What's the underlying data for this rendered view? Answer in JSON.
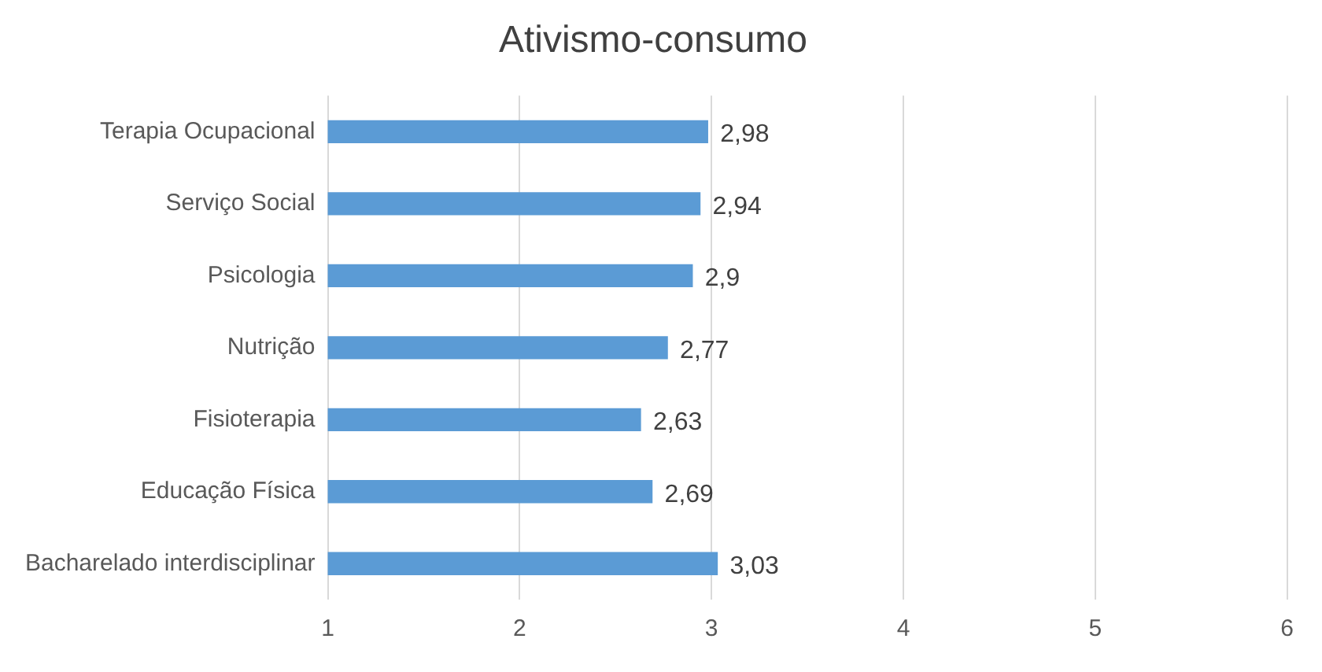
{
  "chart_data": {
    "type": "bar",
    "orientation": "horizontal",
    "title": "Ativismo-consumo",
    "categories": [
      "Terapia Ocupacional",
      "Serviço Social",
      "Psicologia",
      "Nutrição",
      "Fisioterapia",
      "Educação Física",
      "Bacharelado interdisciplinar"
    ],
    "values": [
      2.98,
      2.94,
      2.9,
      2.77,
      2.63,
      2.69,
      3.03
    ],
    "value_labels": [
      "2,98",
      "2,94",
      "2,9",
      "2,77",
      "2,63",
      "2,69",
      "3,03"
    ],
    "color": "#5b9bd5",
    "xlim": [
      1,
      6
    ],
    "xticks": [
      1,
      2,
      3,
      4,
      5,
      6
    ],
    "grid": "x"
  }
}
